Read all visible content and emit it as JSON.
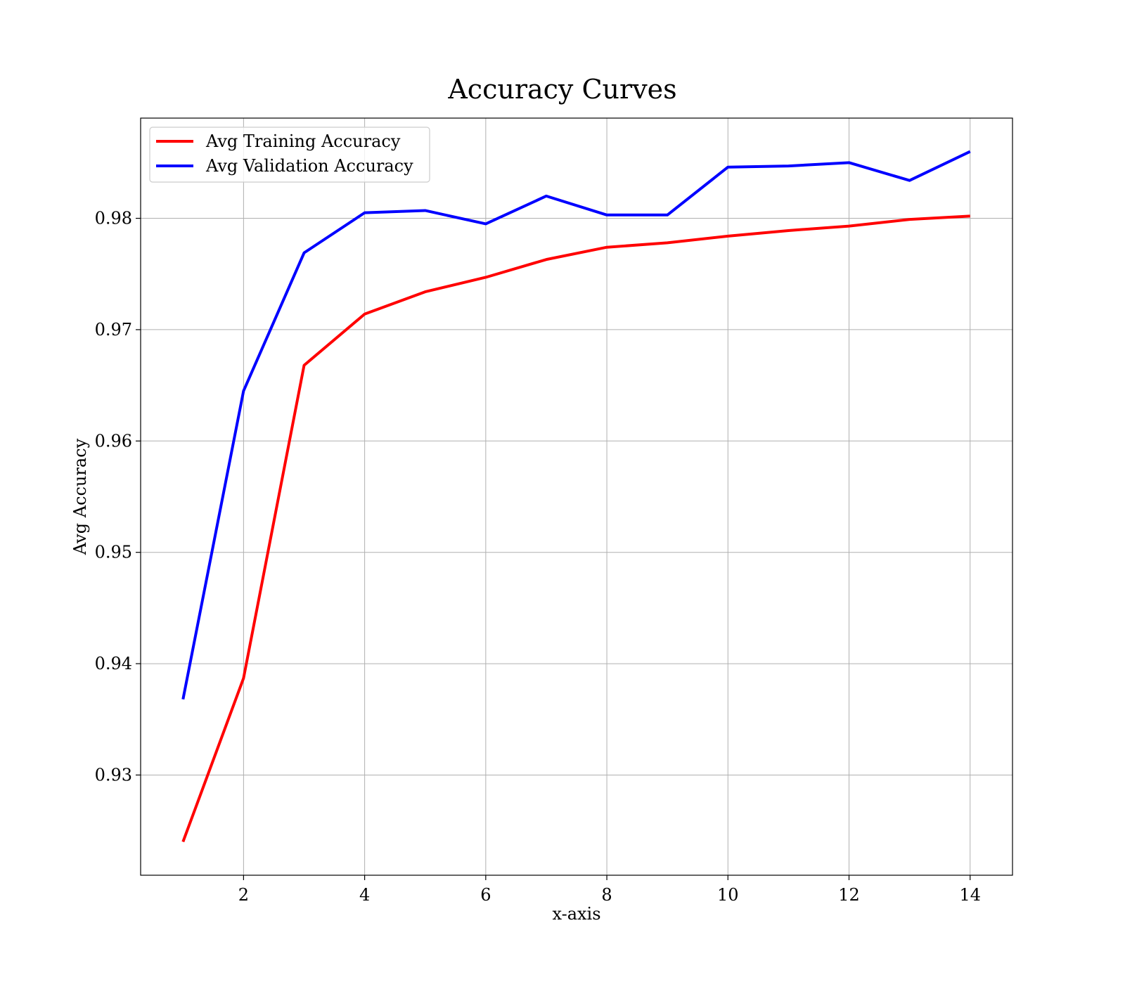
{
  "chart_data": {
    "type": "line",
    "title": "Accuracy Curves",
    "xlabel": "x-axis",
    "ylabel": "Avg Accuracy",
    "x": [
      1,
      2,
      3,
      4,
      5,
      6,
      7,
      8,
      9,
      10,
      11,
      12,
      13,
      14
    ],
    "xlim": [
      0.3,
      14.7
    ],
    "ylim": [
      0.921,
      0.989
    ],
    "xticks": [
      2,
      4,
      6,
      8,
      10,
      12,
      14
    ],
    "xtick_labels": [
      "2",
      "4",
      "6",
      "8",
      "10",
      "12",
      "14"
    ],
    "yticks": [
      0.93,
      0.94,
      0.95,
      0.96,
      0.97,
      0.98
    ],
    "ytick_labels": [
      "0.93",
      "0.94",
      "0.95",
      "0.96",
      "0.97",
      "0.98"
    ],
    "grid": true,
    "legend_position": "top-left",
    "series": [
      {
        "name": "Avg Training Accuracy",
        "color": "#ff0000",
        "values": [
          0.924,
          0.9387,
          0.9668,
          0.9714,
          0.9734,
          0.9747,
          0.9763,
          0.9774,
          0.9778,
          0.9784,
          0.9789,
          0.9793,
          0.9799,
          0.9802
        ]
      },
      {
        "name": "Avg Validation Accuracy",
        "color": "#0000ff",
        "values": [
          0.9368,
          0.9645,
          0.9769,
          0.9805,
          0.9807,
          0.9795,
          0.982,
          0.9803,
          0.9803,
          0.9846,
          0.9847,
          0.985,
          0.9834,
          0.986
        ]
      }
    ]
  }
}
